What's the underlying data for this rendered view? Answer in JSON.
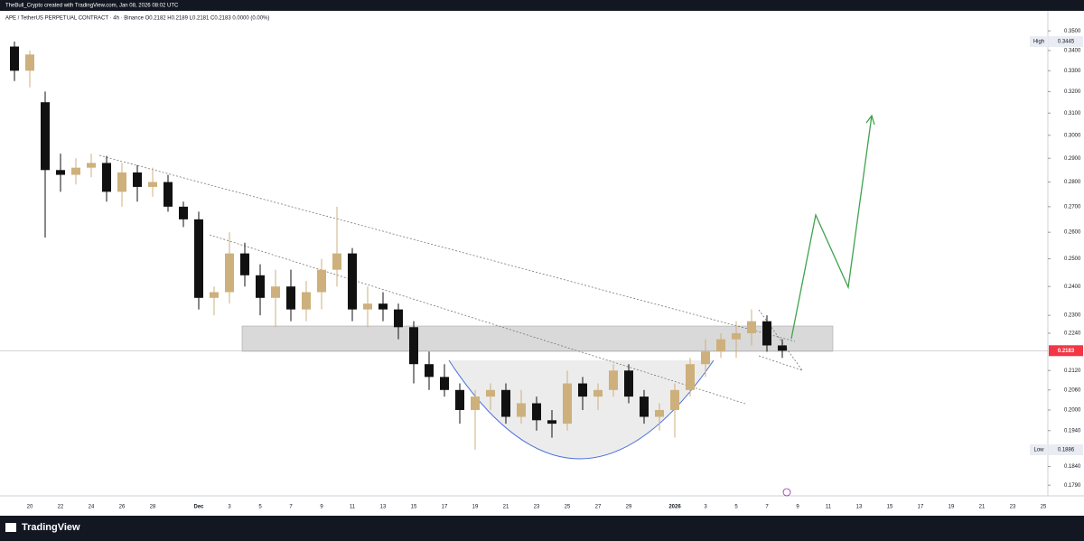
{
  "header": {
    "author_line": "TheBull_Crypto created with TradingView.com, Jan 08, 2026 08:02 UTC",
    "symbol_line": "APE / TetherUS PERPETUAL CONTRACT · 4h · Binance   O0.2182  H0.2189  L0.2181  C0.2183  0.0000 (0.00%)"
  },
  "chart_data": {
    "type": "candlestick",
    "log_scale": true,
    "up_color": "#cdb07c",
    "down_color": "#111111",
    "categories": [
      null,
      "20",
      null,
      "22",
      null,
      "24",
      null,
      "26",
      null,
      "28",
      null,
      null,
      "Dec",
      null,
      "3",
      null,
      "5",
      null,
      "7",
      null,
      "9",
      null,
      "11",
      null,
      "13",
      null,
      "15",
      null,
      "17",
      null,
      "19",
      null,
      "21",
      null,
      "23",
      null,
      "25",
      null,
      "27",
      null,
      "29",
      null,
      null,
      "2026",
      null,
      "3",
      null,
      "5",
      null,
      "7",
      null,
      "9",
      null,
      "11",
      null,
      "13",
      null,
      "15",
      null,
      "17",
      null,
      "19",
      null,
      "21",
      null,
      "23",
      null,
      "25",
      null
    ],
    "open": [
      0.342,
      0.33,
      0.315,
      0.285,
      0.283,
      0.286,
      0.288,
      0.276,
      0.284,
      0.278,
      0.28,
      0.27,
      0.265,
      0.236,
      0.238,
      0.252,
      0.244,
      0.236,
      0.24,
      0.232,
      0.238,
      0.246,
      0.252,
      0.232,
      0.234,
      0.232,
      0.226,
      0.214,
      0.21,
      0.206,
      0.2,
      0.204,
      0.206,
      0.198,
      0.202,
      0.197,
      0.196,
      0.208,
      0.204,
      0.206,
      0.212,
      0.204,
      0.198,
      0.2,
      0.206,
      0.214,
      0.218,
      0.222,
      0.224,
      0.228,
      0.22,
      null,
      null,
      null,
      null,
      null,
      null,
      null,
      null,
      null,
      null,
      null,
      null,
      null,
      null,
      null,
      null,
      null,
      null
    ],
    "high": [
      0.3445,
      0.34,
      0.32,
      0.292,
      0.29,
      0.292,
      0.291,
      0.288,
      0.287,
      0.286,
      0.283,
      0.272,
      0.268,
      0.24,
      0.26,
      0.256,
      0.248,
      0.246,
      0.246,
      0.242,
      0.25,
      0.27,
      0.254,
      0.24,
      0.238,
      0.234,
      0.228,
      0.218,
      0.214,
      0.208,
      0.206,
      0.208,
      0.208,
      0.206,
      0.204,
      0.2,
      0.212,
      0.21,
      0.208,
      0.214,
      0.214,
      0.206,
      0.202,
      0.208,
      0.216,
      0.222,
      0.224,
      0.228,
      0.232,
      0.23,
      0.222,
      null,
      null,
      null,
      null,
      null,
      null,
      null,
      null,
      null,
      null,
      null,
      null,
      null,
      null,
      null,
      null,
      null,
      null
    ],
    "low": [
      0.325,
      0.322,
      0.258,
      0.276,
      0.279,
      0.282,
      0.272,
      0.27,
      0.272,
      0.274,
      0.268,
      0.262,
      0.232,
      0.23,
      0.234,
      0.24,
      0.23,
      0.226,
      0.228,
      0.228,
      0.232,
      0.24,
      0.228,
      0.226,
      0.228,
      0.222,
      0.208,
      0.206,
      0.204,
      0.196,
      0.1886,
      0.2,
      0.196,
      0.196,
      0.194,
      0.192,
      0.194,
      0.2,
      0.2,
      0.204,
      0.202,
      0.196,
      0.194,
      0.192,
      0.204,
      0.21,
      0.216,
      0.216,
      0.22,
      0.218,
      0.216,
      null,
      null,
      null,
      null,
      null,
      null,
      null,
      null,
      null,
      null,
      null,
      null,
      null,
      null,
      null,
      null,
      null,
      null
    ],
    "close": [
      0.33,
      0.338,
      0.285,
      0.283,
      0.286,
      0.288,
      0.276,
      0.284,
      0.278,
      0.28,
      0.27,
      0.265,
      0.236,
      0.238,
      0.252,
      0.244,
      0.236,
      0.24,
      0.232,
      0.238,
      0.246,
      0.252,
      0.232,
      0.234,
      0.232,
      0.226,
      0.214,
      0.21,
      0.206,
      0.2,
      0.204,
      0.206,
      0.198,
      0.202,
      0.197,
      0.196,
      0.208,
      0.204,
      0.206,
      0.212,
      0.204,
      0.198,
      0.2,
      0.206,
      0.214,
      0.218,
      0.222,
      0.224,
      0.228,
      0.22,
      0.2183,
      null,
      null,
      null,
      null,
      null,
      null,
      null,
      null,
      null,
      null,
      null,
      null,
      null,
      null,
      null,
      null,
      null,
      null
    ],
    "ylim": [
      0.1762,
      0.3605
    ],
    "yticks": [
      {
        "value": 0.35,
        "label": "0.3500"
      },
      {
        "value": 0.34,
        "label": "0.3400"
      },
      {
        "value": 0.33,
        "label": "0.3300"
      },
      {
        "value": 0.32,
        "label": "0.3200"
      },
      {
        "value": 0.31,
        "label": "0.3100"
      },
      {
        "value": 0.3,
        "label": "0.3000"
      },
      {
        "value": 0.29,
        "label": "0.2900"
      },
      {
        "value": 0.28,
        "label": "0.2800"
      },
      {
        "value": 0.27,
        "label": "0.2700"
      },
      {
        "value": 0.26,
        "label": "0.2600"
      },
      {
        "value": 0.25,
        "label": "0.2500"
      },
      {
        "value": 0.24,
        "label": "0.2400"
      },
      {
        "value": 0.23,
        "label": "0.2300"
      },
      {
        "value": 0.224,
        "label": "0.2240"
      },
      {
        "value": 0.212,
        "label": "0.2120"
      },
      {
        "value": 0.206,
        "label": "0.2060"
      },
      {
        "value": 0.2,
        "label": "0.2000"
      },
      {
        "value": 0.194,
        "label": "0.1940"
      },
      {
        "value": 0.184,
        "label": "0.1840"
      },
      {
        "value": 0.179,
        "label": "0.1790"
      }
    ],
    "high_marker": {
      "label": "High",
      "value": 0.3445
    },
    "low_marker": {
      "label": "Low",
      "value": 0.1886
    },
    "last_price": 0.2183
  },
  "footer": {
    "brand": "TradingView"
  }
}
